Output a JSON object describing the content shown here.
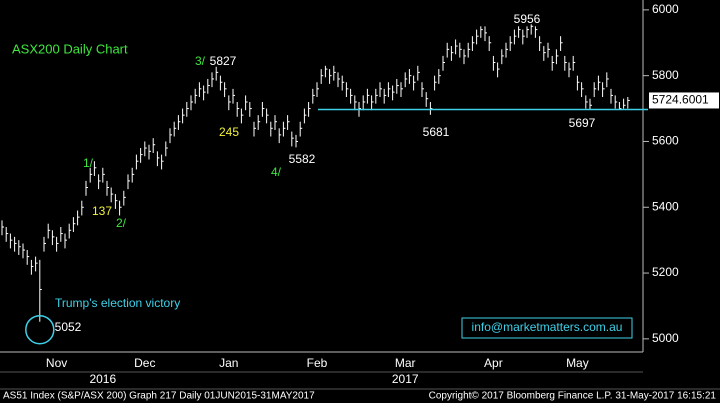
{
  "chart_data": {
    "type": "ohlc",
    "title": "ASX200 Daily Chart",
    "color": "#ffffff",
    "categories": [
      null,
      null,
      null,
      null,
      null,
      null,
      null,
      null,
      null,
      null,
      null,
      null,
      null,
      "Nov",
      null,
      null,
      null,
      null,
      null,
      null,
      null,
      null,
      null,
      null,
      null,
      null,
      null,
      null,
      null,
      null,
      null,
      null,
      null,
      null,
      "Dec",
      null,
      null,
      null,
      null,
      null,
      null,
      null,
      null,
      null,
      null,
      null,
      null,
      null,
      null,
      null,
      null,
      null,
      null,
      null,
      "Jan",
      null,
      null,
      null,
      null,
      null,
      null,
      null,
      null,
      null,
      null,
      null,
      null,
      null,
      null,
      null,
      null,
      null,
      null,
      null,
      null,
      "Feb",
      null,
      null,
      null,
      null,
      null,
      null,
      null,
      null,
      null,
      null,
      null,
      null,
      null,
      null,
      null,
      null,
      null,
      null,
      null,
      null,
      "Mar",
      null,
      null,
      null,
      null,
      null,
      null,
      null,
      null,
      null,
      null,
      null,
      null,
      null,
      null,
      null,
      null,
      null,
      null,
      null,
      null,
      "Apr",
      null,
      null,
      null,
      null,
      null,
      null,
      null,
      null,
      null,
      null,
      null,
      null,
      null,
      null,
      null,
      null,
      null,
      null,
      null,
      "May",
      null,
      null,
      null,
      null,
      null,
      null,
      null,
      null,
      null,
      null,
      null,
      null
    ],
    "year_labels": [
      {
        "text": "2016",
        "at": 24
      },
      {
        "text": "2017",
        "at": 96
      }
    ],
    "high": [
      5360,
      5340,
      5320,
      5310,
      5300,
      5290,
      5270,
      5240,
      5250,
      5240,
      5310,
      5350,
      5330,
      5310,
      5340,
      5320,
      5350,
      5370,
      5390,
      5420,
      5480,
      5520,
      5540,
      5500,
      5520,
      5480,
      5460,
      5440,
      5420,
      5450,
      5500,
      5520,
      5560,
      5580,
      5600,
      5590,
      5610,
      5570,
      5560,
      5600,
      5640,
      5660,
      5680,
      5700,
      5720,
      5740,
      5760,
      5780,
      5770,
      5790,
      5810,
      5827,
      5800,
      5780,
      5740,
      5760,
      5720,
      5700,
      5740,
      5720,
      5660,
      5680,
      5720,
      5700,
      5660,
      5680,
      5640,
      5660,
      5680,
      5630,
      5620,
      5660,
      5700,
      5720,
      5760,
      5780,
      5820,
      5830,
      5820,
      5830,
      5810,
      5800,
      5780,
      5760,
      5740,
      5720,
      5740,
      5760,
      5740,
      5760,
      5780,
      5760,
      5780,
      5770,
      5790,
      5780,
      5810,
      5820,
      5800,
      5830,
      5780,
      5750,
      5720,
      5800,
      5820,
      5860,
      5900,
      5890,
      5910,
      5900,
      5880,
      5900,
      5920,
      5940,
      5950,
      5950,
      5920,
      5860,
      5840,
      5880,
      5900,
      5920,
      5940,
      5950,
      5940,
      5950,
      5956,
      5950,
      5920,
      5890,
      5900,
      5860,
      5880,
      5920,
      5860,
      5840,
      5860,
      5800,
      5780,
      5740,
      5730,
      5780,
      5800,
      5780,
      5810,
      5760,
      5740,
      5720,
      5730,
      5735
    ],
    "low": [
      5315,
      5295,
      5275,
      5265,
      5255,
      5245,
      5225,
      5195,
      5205,
      5052,
      5265,
      5305,
      5285,
      5265,
      5295,
      5275,
      5305,
      5325,
      5345,
      5375,
      5435,
      5475,
      5495,
      5455,
      5475,
      5435,
      5415,
      5395,
      5375,
      5405,
      5455,
      5475,
      5515,
      5535,
      5555,
      5545,
      5565,
      5525,
      5515,
      5555,
      5595,
      5615,
      5635,
      5655,
      5675,
      5695,
      5715,
      5735,
      5725,
      5745,
      5765,
      5785,
      5755,
      5735,
      5695,
      5715,
      5675,
      5655,
      5695,
      5675,
      5615,
      5635,
      5675,
      5655,
      5615,
      5635,
      5595,
      5615,
      5635,
      5585,
      5582,
      5615,
      5655,
      5675,
      5715,
      5735,
      5775,
      5795,
      5775,
      5785,
      5765,
      5755,
      5735,
      5715,
      5695,
      5675,
      5695,
      5715,
      5695,
      5715,
      5735,
      5715,
      5735,
      5725,
      5745,
      5735,
      5765,
      5775,
      5755,
      5785,
      5735,
      5705,
      5681,
      5755,
      5775,
      5815,
      5855,
      5845,
      5865,
      5855,
      5835,
      5855,
      5875,
      5895,
      5915,
      5905,
      5875,
      5815,
      5795,
      5835,
      5855,
      5875,
      5895,
      5915,
      5895,
      5915,
      5925,
      5915,
      5875,
      5845,
      5855,
      5815,
      5835,
      5875,
      5815,
      5795,
      5815,
      5755,
      5735,
      5700,
      5697,
      5735,
      5755,
      5735,
      5765,
      5715,
      5700,
      5700,
      5700,
      5700
    ],
    "close": [
      5340,
      5320,
      5300,
      5290,
      5280,
      5270,
      5250,
      5220,
      5230,
      5150,
      5290,
      5330,
      5310,
      5290,
      5320,
      5300,
      5330,
      5350,
      5370,
      5400,
      5460,
      5500,
      5520,
      5480,
      5500,
      5460,
      5440,
      5420,
      5400,
      5430,
      5480,
      5500,
      5540,
      5560,
      5580,
      5570,
      5590,
      5550,
      5540,
      5580,
      5620,
      5640,
      5660,
      5680,
      5700,
      5720,
      5740,
      5760,
      5750,
      5770,
      5790,
      5810,
      5780,
      5760,
      5720,
      5740,
      5700,
      5680,
      5720,
      5700,
      5640,
      5660,
      5700,
      5680,
      5640,
      5660,
      5620,
      5640,
      5660,
      5610,
      5600,
      5640,
      5680,
      5700,
      5740,
      5760,
      5800,
      5820,
      5800,
      5810,
      5790,
      5780,
      5760,
      5740,
      5720,
      5700,
      5720,
      5740,
      5720,
      5740,
      5760,
      5740,
      5760,
      5750,
      5770,
      5760,
      5790,
      5800,
      5780,
      5810,
      5760,
      5730,
      5700,
      5780,
      5800,
      5840,
      5880,
      5870,
      5890,
      5880,
      5860,
      5880,
      5900,
      5920,
      5940,
      5930,
      5900,
      5840,
      5820,
      5860,
      5880,
      5900,
      5920,
      5940,
      5920,
      5940,
      5950,
      5940,
      5900,
      5870,
      5880,
      5840,
      5860,
      5900,
      5840,
      5820,
      5840,
      5780,
      5760,
      5720,
      5710,
      5760,
      5780,
      5760,
      5790,
      5740,
      5720,
      5700,
      5710,
      5724.6001
    ],
    "ylim": [
      4960,
      6030
    ],
    "yticks": [
      5000,
      5200,
      5400,
      5600,
      5800,
      6000
    ],
    "support_color": "#3fd0e8",
    "annotations": [
      {
        "text": "3/",
        "color": "#3ee63e"
      },
      {
        "text": "245",
        "color": "#f2f23a"
      },
      {
        "text": "4/",
        "color": "#3ee63e"
      },
      {
        "text": "1/",
        "color": "#3ee63e"
      },
      {
        "text": "137",
        "color": "#f2f23a"
      },
      {
        "text": "2/",
        "color": "#3ee63e"
      },
      {
        "text": "Trump's election victory",
        "color": "#3fd0e8"
      }
    ],
    "contact": "info@marketmatters.com.au",
    "footer_left": "AS51 Index (S&P/ASX 200) Graph 217  Daily 01JUN2015-31MAY2017",
    "footer_right": "Copyright© 2017 Bloomberg Finance L.P.    31-May-2017 16:15:21"
  }
}
